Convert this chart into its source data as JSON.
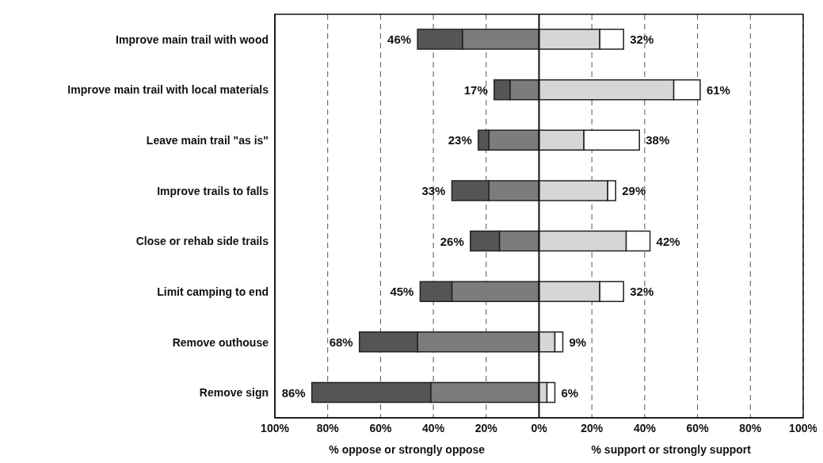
{
  "chart_data": {
    "type": "bar",
    "orientation": "horizontal",
    "stacked": true,
    "categories": [
      "Improve main trail with wood",
      "Improve main trail with local materials",
      "Leave main trail \"as is\"",
      "Improve trails to falls",
      "Close or rehab side trails",
      "Limit camping to end",
      "Remove outhouse",
      "Remove sign"
    ],
    "series": [
      {
        "color": "#7c7c7c",
        "values": [
          -29,
          -11,
          -19,
          -19,
          -15,
          -33,
          -46,
          -41
        ]
      },
      {
        "color": "#555555",
        "values": [
          -17,
          -6,
          -4,
          -14,
          -11,
          -12,
          -22,
          -45
        ]
      },
      {
        "color": "#d6d6d6",
        "values": [
          23,
          51,
          17,
          26,
          33,
          23,
          6,
          3
        ]
      },
      {
        "color": "#ffffff",
        "values": [
          9,
          10,
          21,
          3,
          9,
          9,
          3,
          3
        ]
      }
    ],
    "xlim": [
      -100,
      100
    ],
    "xticks": [
      {
        "value": -100,
        "label": "100%"
      },
      {
        "value": -80,
        "label": "80%"
      },
      {
        "value": -60,
        "label": "60%"
      },
      {
        "value": -40,
        "label": "40%"
      },
      {
        "value": -20,
        "label": "20%"
      },
      {
        "value": 0,
        "label": "0%"
      },
      {
        "value": 20,
        "label": "20%"
      },
      {
        "value": 40,
        "label": "40%"
      },
      {
        "value": 60,
        "label": "60%"
      },
      {
        "value": 80,
        "label": "80%"
      },
      {
        "value": 100,
        "label": "100%"
      }
    ],
    "grid": "x",
    "legend": false,
    "ref_lines": [
      {
        "axis": "x",
        "value": 0,
        "label": null
      }
    ],
    "annotations": [
      "% oppose or strongly oppose",
      "% support or strongly support",
      {
        "text": "46%",
        "x": -46,
        "y": "Improve main trail with wood"
      },
      {
        "text": "32%",
        "x": 32,
        "y": "Improve main trail with wood"
      },
      {
        "text": "17%",
        "x": -17,
        "y": "Improve main trail with local materials"
      },
      {
        "text": "61%",
        "x": 61,
        "y": "Improve main trail with local materials"
      },
      {
        "text": "23%",
        "x": -23,
        "y": "Leave main trail \"as is\""
      },
      {
        "text": "38%",
        "x": 38,
        "y": "Leave main trail \"as is\""
      },
      {
        "text": "33%",
        "x": -33,
        "y": "Improve trails to falls"
      },
      {
        "text": "29%",
        "x": 29,
        "y": "Improve trails to falls"
      },
      {
        "text": "26%",
        "x": -26,
        "y": "Close or rehab side trails"
      },
      {
        "text": "42%",
        "x": 42,
        "y": "Close or rehab side trails"
      },
      {
        "text": "45%",
        "x": -45,
        "y": "Limit camping to end"
      },
      {
        "text": "32%",
        "x": 32,
        "y": "Limit camping to end"
      },
      {
        "text": "68%",
        "x": -68,
        "y": "Remove outhouse"
      },
      {
        "text": "9%",
        "x": 9,
        "y": "Remove outhouse"
      },
      {
        "text": "86%",
        "x": -86,
        "y": "Remove sign"
      },
      {
        "text": "6%",
        "x": 6,
        "y": "Remove sign"
      }
    ]
  }
}
